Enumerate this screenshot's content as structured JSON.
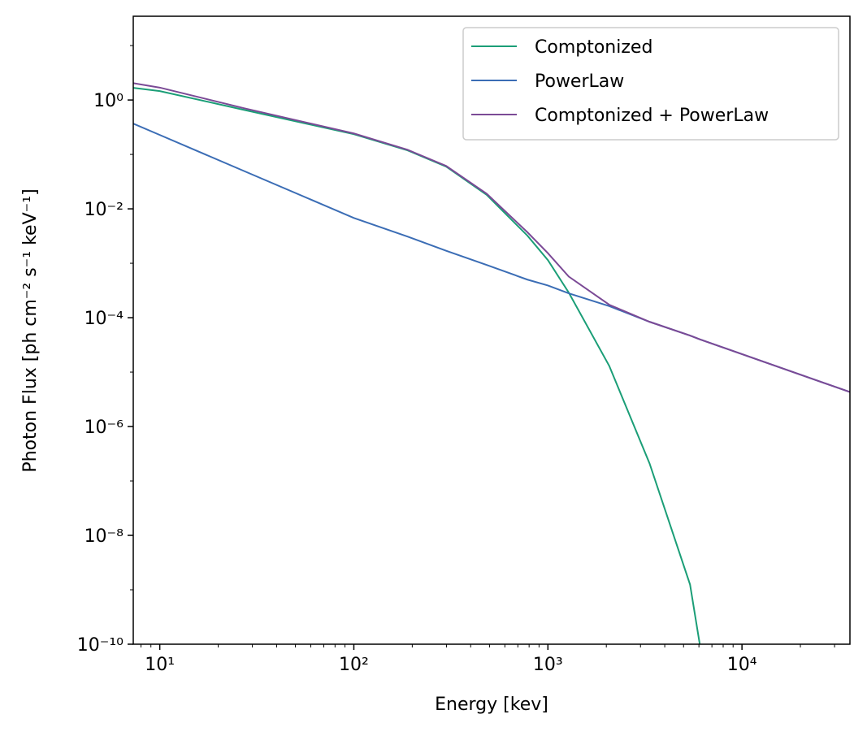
{
  "chart_data": {
    "type": "line",
    "xlabel": "Energy [kev]",
    "ylabel": "Photon Flux [ph cm⁻² s⁻¹ keV⁻¹]",
    "xscale": "log",
    "yscale": "log",
    "x": [
      7.3,
      10,
      27,
      100,
      189,
      299,
      484,
      785,
      1000,
      1280,
      2070,
      3340,
      5400,
      6060,
      36000
    ],
    "series": [
      {
        "name": "Comptonized",
        "color": "#1b9e77",
        "values": [
          1.67,
          1.46,
          0.662,
          0.236,
          0.119,
          0.0598,
          0.018,
          0.0032,
          0.00114,
          0.00029,
          1.3e-05,
          2.1e-07,
          1.25e-09,
          1e-10,
          null
        ]
      },
      {
        "name": "PowerLaw",
        "color": "#3b6db5",
        "values": [
          0.369,
          0.228,
          0.05,
          0.0068,
          0.0031,
          0.0017,
          0.00093,
          0.0005,
          0.00039,
          0.00028,
          0.000163,
          8.4e-05,
          4.7e-05,
          4e-05,
          4.3e-06
        ]
      },
      {
        "name": "Comptonized + PowerLaw",
        "color": "#7b4a96",
        "values": [
          2.04,
          1.69,
          0.71,
          0.243,
          0.122,
          0.0615,
          0.0189,
          0.0037,
          0.00153,
          0.00057,
          0.000173,
          8.4e-05,
          4.7e-05,
          4e-05,
          4.3e-06
        ]
      }
    ],
    "xlim": [
      7.3,
      36000
    ],
    "ylim": [
      1e-10,
      34.6
    ],
    "xticks": [
      {
        "value": 10,
        "label": "10¹"
      },
      {
        "value": 100,
        "label": "10²"
      },
      {
        "value": 1000,
        "label": "10³"
      },
      {
        "value": 10000,
        "label": "10⁴"
      }
    ],
    "yticks": [
      {
        "value": 1e-10,
        "label": "10⁻¹⁰"
      },
      {
        "value": 1e-08,
        "label": "10⁻⁸"
      },
      {
        "value": 1e-06,
        "label": "10⁻⁶"
      },
      {
        "value": 0.0001,
        "label": "10⁻⁴"
      },
      {
        "value": 0.01,
        "label": "10⁻²"
      },
      {
        "value": 1,
        "label": "10⁰"
      }
    ],
    "xminorticks": [
      8,
      9,
      20,
      30,
      40,
      50,
      60,
      70,
      80,
      90,
      200,
      300,
      400,
      500,
      600,
      700,
      800,
      900,
      2000,
      3000,
      4000,
      5000,
      6000,
      7000,
      8000,
      9000,
      20000,
      30000
    ],
    "yminorticks": [
      1e-09,
      1e-07,
      1e-05,
      0.001,
      0.1,
      10
    ],
    "legend": "upper right",
    "grid": false
  }
}
